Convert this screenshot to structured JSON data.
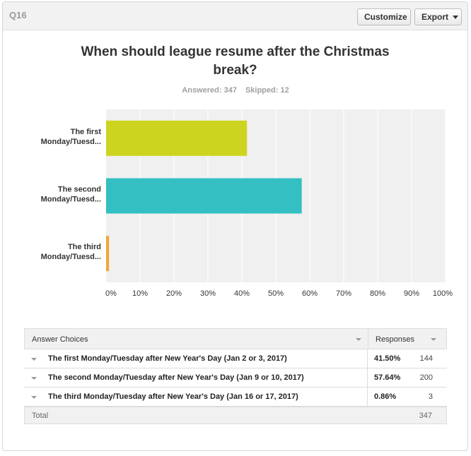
{
  "question_id": "Q16",
  "toolbar": {
    "customize_label": "Customize",
    "export_label": "Export"
  },
  "summary": {
    "answered": "Answered: 347",
    "skipped": "Skipped: 12"
  },
  "table": {
    "headers": {
      "choices": "Answer Choices",
      "responses": "Responses"
    },
    "rows": [
      {
        "label": "The first Monday/Tuesday after New Year's Day (Jan 2 or 3, 2017)",
        "pct": "41.50%",
        "count": "144"
      },
      {
        "label": "The second Monday/Tuesday after New Year's Day (Jan 9 or 10, 2017)",
        "pct": "57.64%",
        "count": "200"
      },
      {
        "label": "The third Monday/Tuesday after New Year's Day (Jan 16 or 17, 2017)",
        "pct": "0.86%",
        "count": "3"
      }
    ],
    "total_label": "Total",
    "total_value": "347"
  },
  "chart_data": {
    "type": "bar",
    "orientation": "horizontal",
    "title": "When should league resume after the Christmas break?",
    "categories": [
      [
        "The first",
        "Monday/Tuesd..."
      ],
      [
        "The second",
        "Monday/Tuesd..."
      ],
      [
        "The third",
        "Monday/Tuesd..."
      ]
    ],
    "values": [
      41.5,
      57.64,
      0.86
    ],
    "colors": [
      "#cdd41f",
      "#34bfc2",
      "#f0a63a"
    ],
    "xlim": [
      0,
      100
    ],
    "xticks": [
      "0%",
      "10%",
      "20%",
      "30%",
      "40%",
      "50%",
      "60%",
      "70%",
      "80%",
      "90%",
      "100%"
    ],
    "grid": true,
    "plot_background": "#f0f0f0"
  }
}
